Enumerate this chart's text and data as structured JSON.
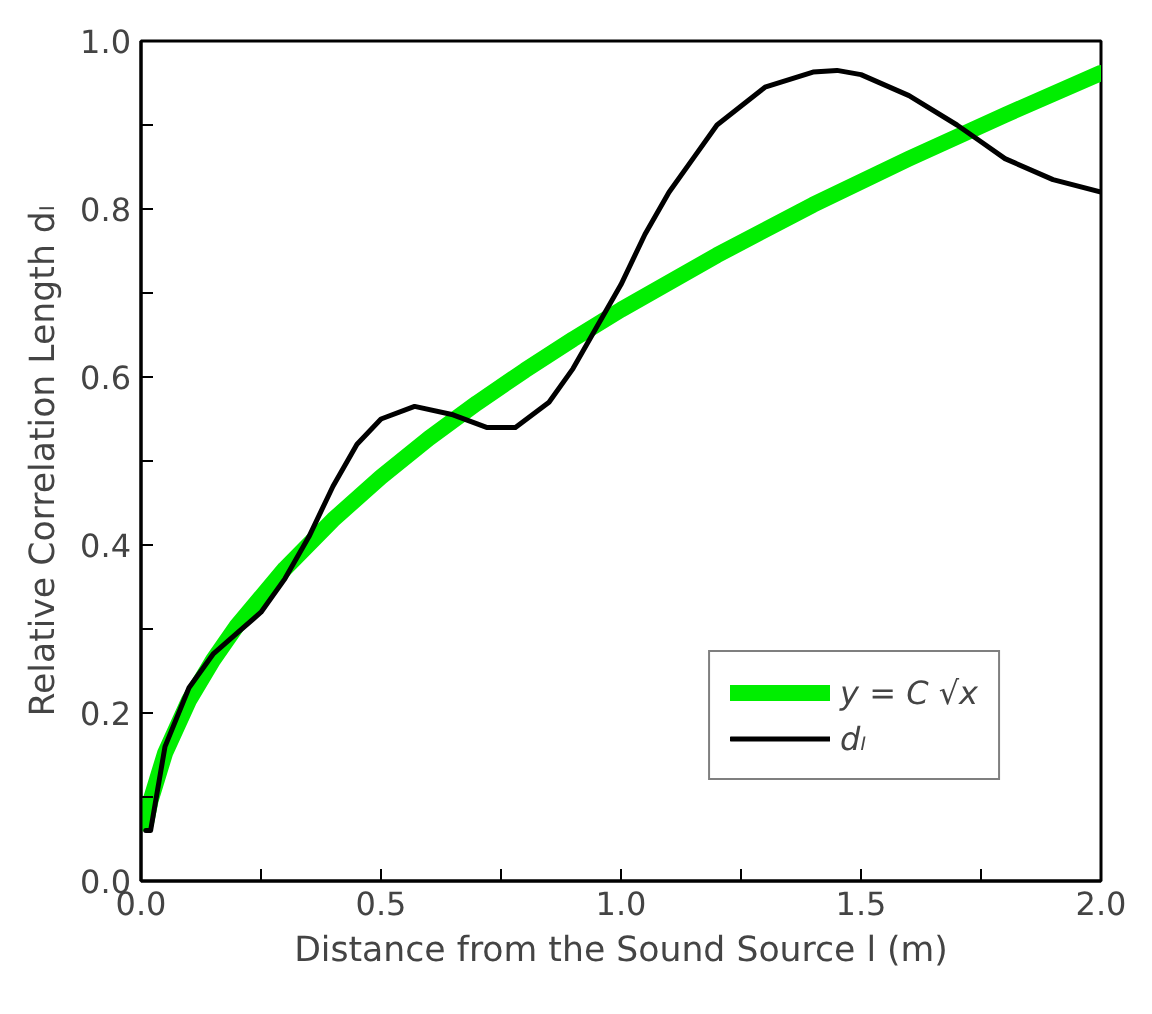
{
  "chart_data": {
    "type": "line",
    "xlabel": "Distance from the Sound Source l (m)",
    "ylabel": "Relative Correlation Length dₗ",
    "xlim": [
      0,
      2.0
    ],
    "ylim": [
      0,
      1.0
    ],
    "xticks": [
      {
        "value": 0,
        "label": "0.0"
      },
      {
        "value": 0.25,
        "label": null
      },
      {
        "value": 0.5,
        "label": "0.5"
      },
      {
        "value": 0.75,
        "label": null
      },
      {
        "value": 1.0,
        "label": "1.0"
      },
      {
        "value": 1.25,
        "label": null
      },
      {
        "value": 1.5,
        "label": "1.5"
      },
      {
        "value": 1.75,
        "label": null
      },
      {
        "value": 2.0,
        "label": "2.0"
      }
    ],
    "yticks": [
      {
        "value": 0,
        "label": "0.0"
      },
      {
        "value": 0.1,
        "label": null
      },
      {
        "value": 0.2,
        "label": "0.2"
      },
      {
        "value": 0.3,
        "label": null
      },
      {
        "value": 0.4,
        "label": "0.4"
      },
      {
        "value": 0.5,
        "label": null
      },
      {
        "value": 0.6,
        "label": "0.6"
      },
      {
        "value": 0.7,
        "label": null
      },
      {
        "value": 0.8,
        "label": "0.8"
      },
      {
        "value": 0.9,
        "label": null
      },
      {
        "value": 1.0,
        "label": "1.0"
      }
    ],
    "grid": false,
    "legend": "bottom right",
    "series": [
      {
        "name": "y = C √x",
        "color": "#00ee00",
        "x": [
          0.01,
          0.02,
          0.05,
          0.1,
          0.15,
          0.2,
          0.3,
          0.4,
          0.5,
          0.6,
          0.7,
          0.8,
          0.9,
          1.0,
          1.2,
          1.4,
          1.6,
          1.8,
          2.0
        ],
        "values": [
          0.068,
          0.096,
          0.152,
          0.215,
          0.263,
          0.304,
          0.372,
          0.43,
          0.481,
          0.527,
          0.569,
          0.608,
          0.645,
          0.68,
          0.745,
          0.805,
          0.86,
          0.912,
          0.962
        ]
      },
      {
        "name": "dₗ",
        "color": "#000000",
        "x": [
          0.01,
          0.02,
          0.05,
          0.1,
          0.15,
          0.2,
          0.25,
          0.3,
          0.35,
          0.4,
          0.45,
          0.5,
          0.57,
          0.65,
          0.72,
          0.78,
          0.85,
          0.9,
          0.95,
          1.0,
          1.05,
          1.1,
          1.15,
          1.2,
          1.3,
          1.4,
          1.45,
          1.5,
          1.6,
          1.7,
          1.75,
          1.8,
          1.9,
          2.0
        ],
        "values": [
          0.06,
          0.06,
          0.16,
          0.23,
          0.27,
          0.295,
          0.32,
          0.36,
          0.41,
          0.47,
          0.52,
          0.55,
          0.565,
          0.555,
          0.54,
          0.54,
          0.57,
          0.61,
          0.66,
          0.71,
          0.77,
          0.82,
          0.86,
          0.9,
          0.945,
          0.963,
          0.965,
          0.96,
          0.935,
          0.9,
          0.88,
          0.86,
          0.835,
          0.82
        ]
      }
    ]
  }
}
